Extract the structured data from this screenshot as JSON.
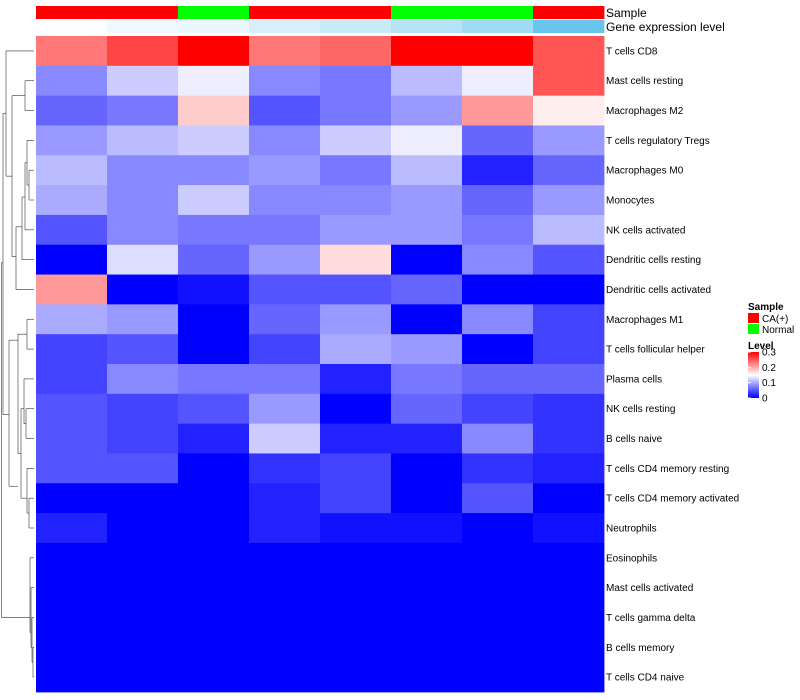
{
  "chart_data": {
    "type": "heatmap",
    "title": "",
    "annotations": [
      {
        "name": "Sample",
        "label": "Sample"
      },
      {
        "name": "Gene expression level",
        "label": "Gene expression level"
      }
    ],
    "columns": [
      {
        "sample": "CA(+)",
        "expr": 0.02
      },
      {
        "sample": "CA(+)",
        "expr": 0.1
      },
      {
        "sample": "Normal",
        "expr": 0.13
      },
      {
        "sample": "CA(+)",
        "expr": 0.25
      },
      {
        "sample": "CA(+)",
        "expr": 0.33
      },
      {
        "sample": "Normal",
        "expr": 0.45
      },
      {
        "sample": "Normal",
        "expr": 0.58
      },
      {
        "sample": "CA(+)",
        "expr": 0.92
      }
    ],
    "rows": [
      "T cells CD8",
      "Mast cells resting",
      "Macrophages M2",
      "T cells regulatory  Tregs",
      "Macrophages M0",
      "Monocytes",
      "NK cells activated",
      "Dendritic cells resting",
      "Dendritic cells activated",
      "Macrophages M1",
      "T cells follicular helper",
      "Plasma cells",
      "NK cells resting",
      "B cells naive",
      "T cells CD4 memory resting",
      "T cells CD4 memory activated",
      "Neutrophils",
      "Eosinophils",
      "Mast cells activated",
      "T cells gamma delta",
      "B cells memory",
      "T cells CD4 naive"
    ],
    "values": [
      [
        0.23,
        0.26,
        0.3,
        0.23,
        0.24,
        0.3,
        0.3,
        0.25
      ],
      [
        0.08,
        0.12,
        0.14,
        0.08,
        0.07,
        0.11,
        0.14,
        0.25
      ],
      [
        0.06,
        0.07,
        0.18,
        0.05,
        0.07,
        0.09,
        0.21,
        0.16
      ],
      [
        0.09,
        0.11,
        0.12,
        0.08,
        0.12,
        0.14,
        0.06,
        0.09
      ],
      [
        0.11,
        0.08,
        0.08,
        0.09,
        0.07,
        0.11,
        0.02,
        0.06
      ],
      [
        0.1,
        0.08,
        0.12,
        0.08,
        0.08,
        0.09,
        0.06,
        0.09
      ],
      [
        0.05,
        0.08,
        0.07,
        0.07,
        0.09,
        0.09,
        0.07,
        0.11
      ],
      [
        0.0,
        0.13,
        0.06,
        0.09,
        0.17,
        0.0,
        0.08,
        0.05
      ],
      [
        0.21,
        0.0,
        0.01,
        0.05,
        0.05,
        0.06,
        0.0,
        0.0
      ],
      [
        0.1,
        0.09,
        0.0,
        0.06,
        0.09,
        0.0,
        0.08,
        0.04
      ],
      [
        0.04,
        0.05,
        0.0,
        0.04,
        0.1,
        0.09,
        0.0,
        0.04
      ],
      [
        0.04,
        0.08,
        0.07,
        0.07,
        0.02,
        0.07,
        0.06,
        0.06
      ],
      [
        0.05,
        0.04,
        0.05,
        0.09,
        0.0,
        0.06,
        0.04,
        0.03
      ],
      [
        0.05,
        0.04,
        0.02,
        0.12,
        0.02,
        0.02,
        0.08,
        0.03
      ],
      [
        0.05,
        0.05,
        0.0,
        0.03,
        0.04,
        0.0,
        0.03,
        0.02
      ],
      [
        0.0,
        0.0,
        0.0,
        0.02,
        0.04,
        0.0,
        0.05,
        0.0
      ],
      [
        0.02,
        0.0,
        0.0,
        0.02,
        0.01,
        0.01,
        0.0,
        0.01
      ],
      [
        0.0,
        0.0,
        0.0,
        0.0,
        0.0,
        0.0,
        0.0,
        0.0
      ],
      [
        0.0,
        0.0,
        0.0,
        0.0,
        0.0,
        0.0,
        0.0,
        0.0
      ],
      [
        0.0,
        0.0,
        0.0,
        0.0,
        0.0,
        0.0,
        0.0,
        0.0
      ],
      [
        0.0,
        0.0,
        0.0,
        0.0,
        0.0,
        0.0,
        0.0,
        0.0
      ],
      [
        0.0,
        0.0,
        0.0,
        0.0,
        0.0,
        0.0,
        0.0,
        0.0
      ]
    ],
    "color_scale": {
      "min": 0,
      "mid": 0.15,
      "max": 0.3,
      "low_color": "#0000ff",
      "mid_color": "#ffffff",
      "high_color": "#ff0000"
    },
    "expr_scale": {
      "low_color": "#ffffff",
      "high_color": "#5bc0eb"
    },
    "sample_colors": {
      "CA(+)": "#ff0000",
      "Normal": "#00ff00"
    },
    "legend": {
      "position": "right",
      "sample_title": "Sample",
      "sample_entries": [
        "CA(+)",
        "Normal"
      ],
      "level_title": "Level",
      "level_ticks": [
        {
          "value": 0.3,
          "label": "0.3"
        },
        {
          "value": 0.2,
          "label": "0.2"
        },
        {
          "value": 0.1,
          "label": "0.1"
        },
        {
          "value": 0,
          "label": "0"
        }
      ]
    },
    "row_dendrogram": true
  }
}
